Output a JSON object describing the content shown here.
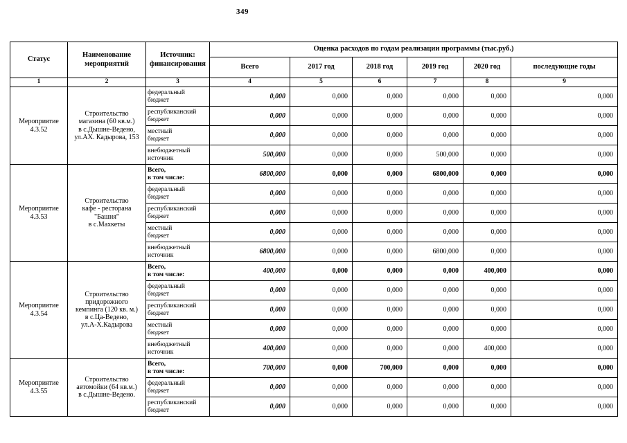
{
  "page_number": "349",
  "colors": {
    "border": "#000000",
    "text": "#000000",
    "background": "#ffffff"
  },
  "table": {
    "headers": {
      "status": "Статус",
      "activity": "Наименование\nмероприятий",
      "source": "Источник:\nфинансирования",
      "cost_title": "Оценка расходов по годам реализации  программы (тыс.руб.)",
      "year_cols": [
        "Всего",
        "2017 год",
        "2018 год",
        "2019 год",
        "2020 год",
        "последующие годы"
      ],
      "col_numbers": [
        "1",
        "2",
        "3",
        "4",
        "5",
        "6",
        "7",
        "8",
        "9"
      ]
    },
    "groups": [
      {
        "status": "Мероприятие\n4.3.52",
        "name": "Строительство\nмагазина (60 кв.м.)\nв с.Дышне-Ведено,\nул.АХ. Кадырова, 153",
        "rows": [
          {
            "source": "федеральный\nбюджет",
            "total": false,
            "values": [
              "0,000",
              "0,000",
              "0,000",
              "0,000",
              "0,000",
              "0,000"
            ]
          },
          {
            "source": "республиканский\nбюджет",
            "total": false,
            "values": [
              "0,000",
              "0,000",
              "0,000",
              "0,000",
              "0,000",
              "0,000"
            ]
          },
          {
            "source": "местный\nбюджет",
            "total": false,
            "values": [
              "0,000",
              "0,000",
              "0,000",
              "0,000",
              "0,000",
              "0,000"
            ]
          },
          {
            "source": "внебюджетный\nисточник",
            "total": false,
            "values": [
              "500,000",
              "0,000",
              "0,000",
              "500,000",
              "0,000",
              "0,000"
            ]
          }
        ]
      },
      {
        "status": "Мероприятие\n4.3.53",
        "name": "Строительство\nкафе - ресторана\n\"Башня\"\nв с.Махкеты",
        "rows": [
          {
            "source": "Всего,\nв том числе:",
            "total": true,
            "values": [
              "6800,000",
              "0,000",
              "0,000",
              "6800,000",
              "0,000",
              "0,000"
            ]
          },
          {
            "source": "федеральный\nбюджет",
            "total": false,
            "values": [
              "0,000",
              "0,000",
              "0,000",
              "0,000",
              "0,000",
              "0,000"
            ]
          },
          {
            "source": "республиканский\nбюджет",
            "total": false,
            "values": [
              "0,000",
              "0,000",
              "0,000",
              "0,000",
              "0,000",
              "0,000"
            ]
          },
          {
            "source": "местный\nбюджет",
            "total": false,
            "values": [
              "0,000",
              "0,000",
              "0,000",
              "0,000",
              "0,000",
              "0,000"
            ]
          },
          {
            "source": "внебюджетный\nисточник",
            "total": false,
            "values": [
              "6800,000",
              "0,000",
              "0,000",
              "6800,000",
              "0,000",
              "0,000"
            ]
          }
        ]
      },
      {
        "status": "Мероприятие\n4.3.54",
        "name": "Строительство\nпридорожного\nкемпинга (120 кв. м.)\nв с.Ца-Ведено,\nул.А-Х.Кадырова",
        "rows": [
          {
            "source": "Всего,\nв том числе:",
            "total": true,
            "values": [
              "400,000",
              "0,000",
              "0,000",
              "0,000",
              "400,000",
              "0,000"
            ]
          },
          {
            "source": "федеральный\nбюджет",
            "total": false,
            "values": [
              "0,000",
              "0,000",
              "0,000",
              "0,000",
              "0,000",
              "0,000"
            ]
          },
          {
            "source": "республиканский\nбюджет",
            "total": false,
            "values": [
              "0,000",
              "0,000",
              "0,000",
              "0,000",
              "0,000",
              "0,000"
            ]
          },
          {
            "source": "местный\nбюджет",
            "total": false,
            "values": [
              "0,000",
              "0,000",
              "0,000",
              "0,000",
              "0,000",
              "0,000"
            ]
          },
          {
            "source": "внебюджетный\nисточник",
            "total": false,
            "values": [
              "400,000",
              "0,000",
              "0,000",
              "0,000",
              "400,000",
              "0,000"
            ]
          }
        ]
      },
      {
        "status": "Мероприятие\n4.3.55",
        "name": "Строительство\nавтомойки (64 кв.м.)\nв с.Дышне-Ведено.",
        "rows": [
          {
            "source": "Всего,\nв том числе:",
            "total": true,
            "values": [
              "700,000",
              "0,000",
              "700,000",
              "0,000",
              "0,000",
              "0,000"
            ]
          },
          {
            "source": "федеральный\nбюджет",
            "total": false,
            "values": [
              "0,000",
              "0,000",
              "0,000",
              "0,000",
              "0,000",
              "0,000"
            ]
          },
          {
            "source": "республиканский\nбюджет",
            "total": false,
            "values": [
              "0,000",
              "0,000",
              "0,000",
              "0,000",
              "0,000",
              "0,000"
            ]
          }
        ]
      }
    ]
  }
}
